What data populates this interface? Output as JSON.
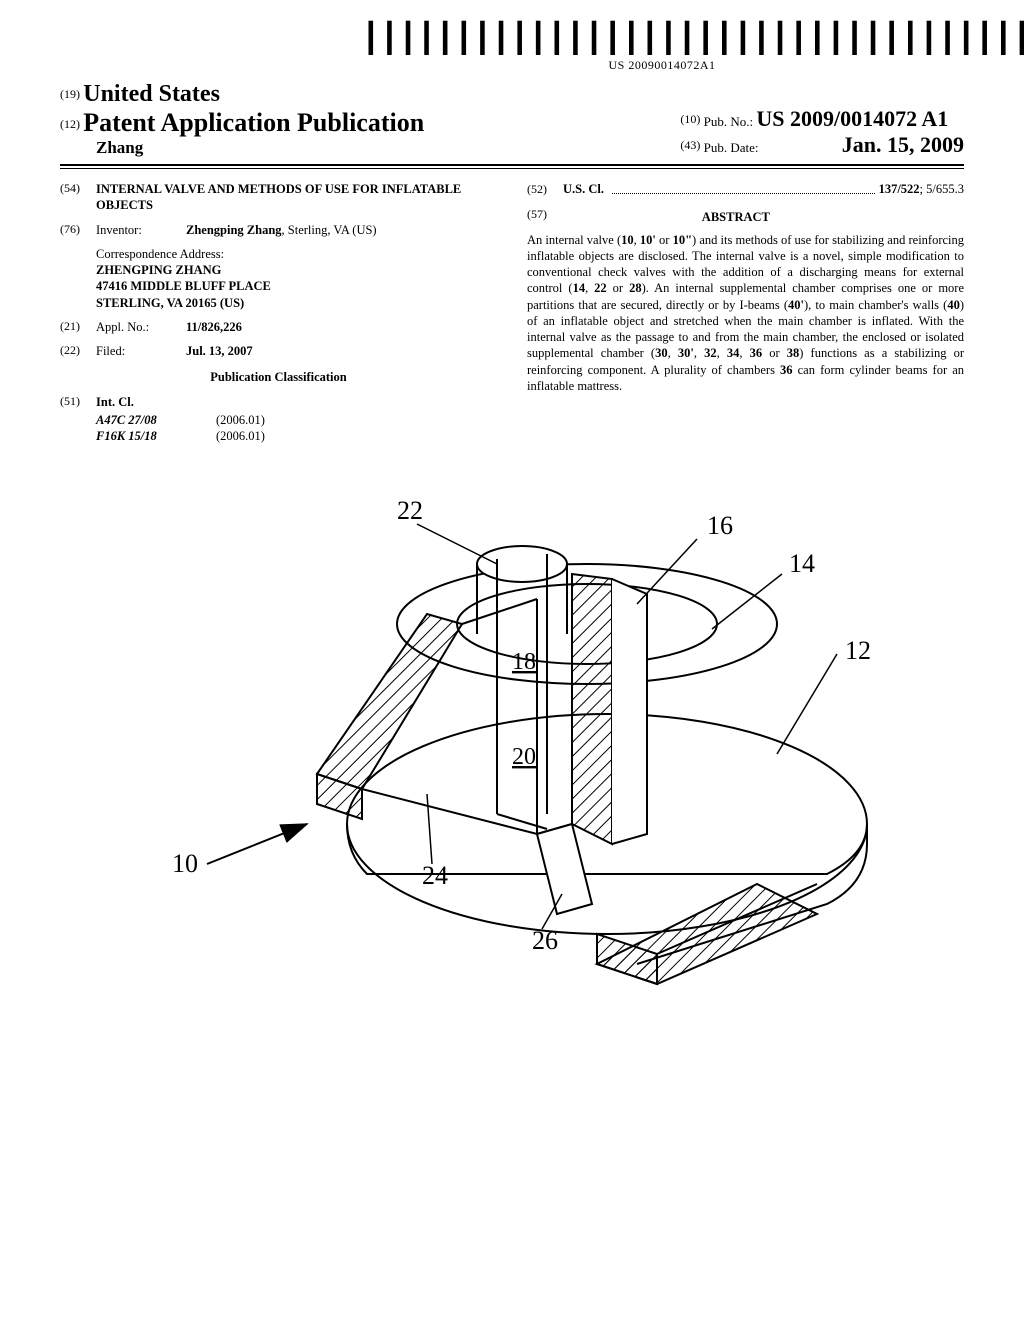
{
  "barcode": {
    "text": "US 20090014072A1"
  },
  "header": {
    "country_inid": "(19)",
    "country": "United States",
    "pubtype_inid": "(12)",
    "pubtype": "Patent Application Publication",
    "authors": "Zhang",
    "pubno_inid": "(10)",
    "pubno_label": "Pub. No.:",
    "pubno": "US 2009/0014072 A1",
    "pubdate_inid": "(43)",
    "pubdate_label": "Pub. Date:",
    "pubdate": "Jan. 15, 2009"
  },
  "left": {
    "title_inid": "(54)",
    "title": "INTERNAL VALVE AND METHODS OF USE FOR INFLATABLE OBJECTS",
    "inventor_inid": "(76)",
    "inventor_label": "Inventor:",
    "inventor_value": "Zhengping Zhang",
    "inventor_loc": ", Sterling, VA (US)",
    "correspondence_label": "Correspondence Address:",
    "correspondence_line1": "ZHENGPING ZHANG",
    "correspondence_line2": "47416 MIDDLE BLUFF PLACE",
    "correspondence_line3": "STERLING, VA 20165 (US)",
    "applno_inid": "(21)",
    "applno_label": "Appl. No.:",
    "applno_value": "11/826,226",
    "filed_inid": "(22)",
    "filed_label": "Filed:",
    "filed_value": "Jul. 13, 2007",
    "pubclass": "Publication Classification",
    "intcl_inid": "(51)",
    "intcl_label": "Int. Cl.",
    "intcl_rows": [
      {
        "code": "A47C 27/08",
        "edition": "(2006.01)"
      },
      {
        "code": "F16K 15/18",
        "edition": "(2006.01)"
      }
    ]
  },
  "right": {
    "uscl_inid": "(52)",
    "uscl_label": "U.S. Cl.",
    "uscl_value": "137/522",
    "uscl_value2": "; 5/655.3",
    "abstract_inid": "(57)",
    "abstract_title": "ABSTRACT",
    "abstract_body": "An internal valve (10, 10' or 10\") and its methods of use for stabilizing and reinforcing inflatable objects are disclosed. The internal valve is a novel, simple modification to conventional check valves with the addition of a discharging means for external control (14, 22 or 28). An internal supplemental chamber comprises one or more partitions that are secured, directly or by I-beams (40'), to main chamber's walls (40) of an inflatable object and stretched when the main chamber is inflated. With the internal valve as the passage to and from the main chamber, the enclosed or isolated supplemental chamber (30, 30', 32, 34, 36 or 38) functions as a stabilizing or reinforcing component. A plurality of chambers 36 can form cylinder beams for an inflatable mattress."
  },
  "figure": {
    "labels": {
      "n10": "10",
      "n12": "12",
      "n14": "14",
      "n16": "16",
      "n18": "18",
      "n20": "20",
      "n22": "22",
      "n24": "24",
      "n26": "26"
    }
  }
}
